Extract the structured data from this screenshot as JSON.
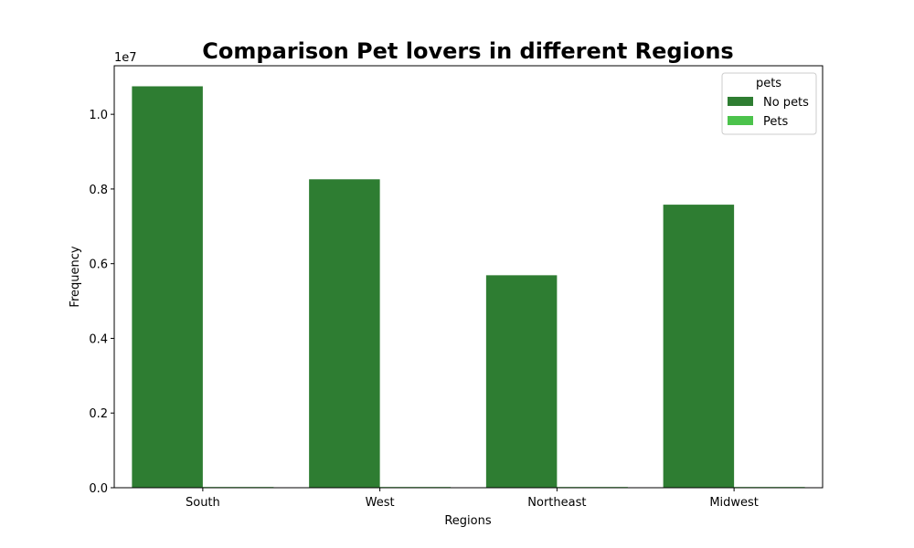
{
  "chart_data": {
    "type": "bar",
    "title": "Comparison Pet lovers in different Regions",
    "xlabel": "Regions",
    "ylabel": "Frequency",
    "categories": [
      "South",
      "West",
      "Northeast",
      "Midwest"
    ],
    "series": [
      {
        "name": "No pets",
        "color": "#2e7d32",
        "values": [
          10750000,
          8260000,
          5690000,
          7580000
        ]
      },
      {
        "name": "Pets",
        "color": "#4cc34c",
        "values": [
          20000,
          20000,
          20000,
          20000
        ]
      }
    ],
    "ylim": [
      0,
      11300000
    ],
    "y_ticks": [
      0,
      2000000,
      4000000,
      6000000,
      8000000,
      10000000
    ],
    "y_tick_labels": [
      "0.0",
      "0.2",
      "0.4",
      "0.6",
      "0.8",
      "1.0"
    ],
    "y_offset_label": "1e7",
    "legend": {
      "title": "pets",
      "position": "top-right"
    },
    "grid": false
  }
}
